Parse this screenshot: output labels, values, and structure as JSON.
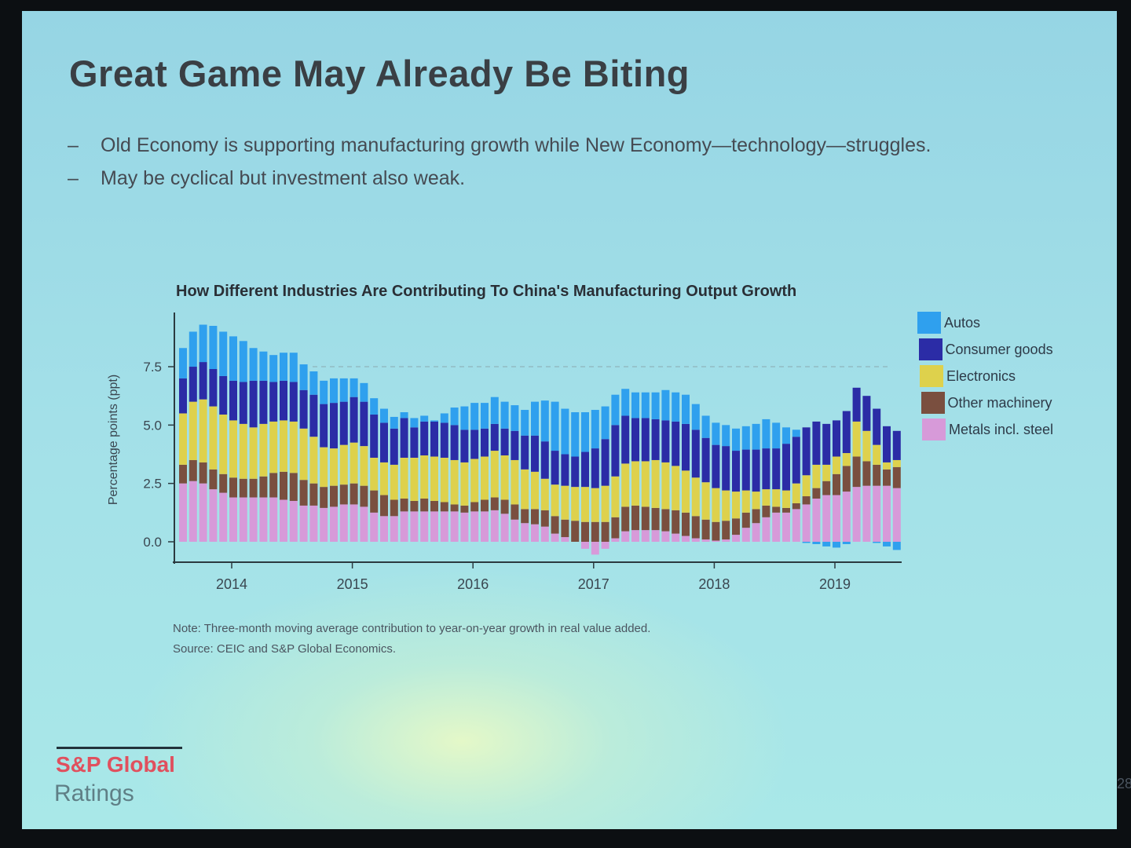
{
  "slide": {
    "title": "Great Game May Already Be Biting",
    "bullets": [
      {
        "marker": "–",
        "text": "Old Economy is supporting manufacturing growth while New Economy—technology—struggles."
      },
      {
        "marker": "–",
        "text": "May be cyclical but investment also weak."
      }
    ],
    "note": "Note: Three-month moving average contribution to year-on-year growth in real value added.",
    "source": "Source: CEIC and S&P Global Economics.",
    "logo": {
      "brand": "S&P Global",
      "sub": "Ratings",
      "brand_color": "#e0505e"
    },
    "page_number": "28"
  },
  "chart_data": {
    "type": "bar",
    "stacked": true,
    "title": "How Different Industries Are Contributing To China's Manufacturing Output Growth",
    "xlabel": "",
    "ylabel": "Percentage points (ppt)",
    "ylim": [
      -0.8,
      9.5
    ],
    "yticks": [
      "0.0",
      "2.5",
      "5.0",
      "7.5"
    ],
    "xticks": [
      "2014",
      "2015",
      "2016",
      "2017",
      "2018",
      "2019"
    ],
    "reference_line": {
      "y": 7.5,
      "style": "dashed"
    },
    "legend_position": "right",
    "x": [
      "2013-08",
      "2013-09",
      "2013-10",
      "2013-11",
      "2013-12",
      "2014-01",
      "2014-02",
      "2014-03",
      "2014-04",
      "2014-05",
      "2014-06",
      "2014-07",
      "2014-08",
      "2014-09",
      "2014-10",
      "2014-11",
      "2014-12",
      "2015-01",
      "2015-02",
      "2015-03",
      "2015-04",
      "2015-05",
      "2015-06",
      "2015-07",
      "2015-08",
      "2015-09",
      "2015-10",
      "2015-11",
      "2015-12",
      "2016-01",
      "2016-02",
      "2016-03",
      "2016-04",
      "2016-05",
      "2016-06",
      "2016-07",
      "2016-08",
      "2016-09",
      "2016-10",
      "2016-11",
      "2016-12",
      "2017-01",
      "2017-02",
      "2017-03",
      "2017-04",
      "2017-05",
      "2017-06",
      "2017-07",
      "2017-08",
      "2017-09",
      "2017-10",
      "2017-11",
      "2017-12",
      "2018-01",
      "2018-02",
      "2018-03",
      "2018-04",
      "2018-05",
      "2018-06",
      "2018-07",
      "2018-08",
      "2018-09",
      "2018-10",
      "2018-11",
      "2018-12",
      "2019-01",
      "2019-02",
      "2019-03",
      "2019-04",
      "2019-05",
      "2019-06",
      "2019-07"
    ],
    "series": [
      {
        "name": "Metals incl. steel",
        "color": "#d79ad9",
        "values": [
          2.5,
          2.6,
          2.5,
          2.25,
          2.1,
          1.9,
          1.9,
          1.9,
          1.9,
          1.9,
          1.8,
          1.75,
          1.55,
          1.55,
          1.45,
          1.5,
          1.6,
          1.6,
          1.5,
          1.25,
          1.1,
          1.1,
          1.3,
          1.3,
          1.3,
          1.3,
          1.3,
          1.3,
          1.25,
          1.3,
          1.3,
          1.35,
          1.2,
          0.95,
          0.8,
          0.75,
          0.65,
          0.35,
          0.2,
          0,
          -0.3,
          -0.55,
          -0.3,
          0.15,
          0.45,
          0.5,
          0.5,
          0.5,
          0.45,
          0.35,
          0.25,
          0.15,
          0.1,
          0.05,
          0.1,
          0.3,
          0.6,
          0.8,
          1.05,
          1.25,
          1.25,
          1.4,
          1.6,
          1.85,
          2.0,
          2.0,
          2.15,
          2.35,
          2.4,
          2.4,
          2.4,
          2.3
        ]
      },
      {
        "name": "Other machinery",
        "color": "#7a4f3f",
        "values": [
          0.8,
          0.9,
          0.9,
          0.85,
          0.8,
          0.85,
          0.8,
          0.8,
          0.9,
          1.05,
          1.2,
          1.2,
          1.1,
          0.95,
          0.9,
          0.9,
          0.85,
          0.9,
          0.9,
          0.95,
          0.9,
          0.7,
          0.55,
          0.45,
          0.55,
          0.45,
          0.4,
          0.3,
          0.3,
          0.4,
          0.5,
          0.55,
          0.6,
          0.65,
          0.6,
          0.65,
          0.7,
          0.75,
          0.75,
          0.9,
          0.85,
          0.85,
          0.85,
          0.9,
          1.05,
          1.05,
          1.0,
          0.95,
          0.95,
          1.0,
          1.0,
          0.95,
          0.85,
          0.8,
          0.8,
          0.7,
          0.65,
          0.6,
          0.5,
          0.25,
          0.2,
          0.25,
          0.35,
          0.45,
          0.6,
          0.9,
          1.1,
          1.3,
          1.05,
          0.9,
          0.7,
          0.9
        ]
      },
      {
        "name": "Electronics",
        "color": "#ded14c",
        "values": [
          2.2,
          2.5,
          2.7,
          2.7,
          2.55,
          2.45,
          2.35,
          2.2,
          2.25,
          2.2,
          2.2,
          2.2,
          2.2,
          2.0,
          1.7,
          1.6,
          1.7,
          1.75,
          1.7,
          1.4,
          1.4,
          1.5,
          1.75,
          1.85,
          1.85,
          1.9,
          1.9,
          1.9,
          1.85,
          1.85,
          1.85,
          2.0,
          1.9,
          1.9,
          1.7,
          1.6,
          1.35,
          1.35,
          1.45,
          1.45,
          1.5,
          1.45,
          1.55,
          1.75,
          1.85,
          1.9,
          1.95,
          2.05,
          2.0,
          1.9,
          1.8,
          1.65,
          1.6,
          1.45,
          1.3,
          1.15,
          0.95,
          0.75,
          0.7,
          0.75,
          0.75,
          0.85,
          0.9,
          1.0,
          0.7,
          0.75,
          0.55,
          1.5,
          1.3,
          0.85,
          0.3,
          0.3
        ]
      },
      {
        "name": "Consumer goods",
        "color": "#2b2ca6",
        "values": [
          1.5,
          1.5,
          1.6,
          1.6,
          1.65,
          1.7,
          1.8,
          2.0,
          1.85,
          1.7,
          1.7,
          1.7,
          1.65,
          1.8,
          1.85,
          1.95,
          1.85,
          1.95,
          1.9,
          1.85,
          1.7,
          1.55,
          1.7,
          1.3,
          1.45,
          1.5,
          1.5,
          1.5,
          1.4,
          1.25,
          1.2,
          1.15,
          1.15,
          1.25,
          1.45,
          1.55,
          1.6,
          1.45,
          1.35,
          1.3,
          1.5,
          1.7,
          2.0,
          2.2,
          2.05,
          1.85,
          1.85,
          1.75,
          1.8,
          1.9,
          2.0,
          2.05,
          1.9,
          1.85,
          1.9,
          1.75,
          1.75,
          1.8,
          1.75,
          1.75,
          2.0,
          2.0,
          2.05,
          1.85,
          1.75,
          1.55,
          1.8,
          1.45,
          1.5,
          1.55,
          1.55,
          1.25
        ]
      },
      {
        "name": "Autos",
        "color": "#2fa0ee",
        "values": [
          1.3,
          1.5,
          1.6,
          1.85,
          1.9,
          1.9,
          1.75,
          1.4,
          1.25,
          1.15,
          1.2,
          1.25,
          1.1,
          1.0,
          1.0,
          1.05,
          1.0,
          0.8,
          0.8,
          0.7,
          0.6,
          0.5,
          0.25,
          0.4,
          0.25,
          0.05,
          0.4,
          0.75,
          1.0,
          1.15,
          1.1,
          1.15,
          1.15,
          1.1,
          1.1,
          1.45,
          1.75,
          2.1,
          1.95,
          1.9,
          1.7,
          1.65,
          1.4,
          1.3,
          1.15,
          1.1,
          1.1,
          1.15,
          1.3,
          1.25,
          1.25,
          1.1,
          0.95,
          0.95,
          0.9,
          0.95,
          1.0,
          1.1,
          1.25,
          1.1,
          0.7,
          0.3,
          -0.05,
          -0.1,
          -0.2,
          -0.25,
          -0.1,
          0,
          0,
          -0.05,
          -0.2,
          -0.35
        ]
      }
    ],
    "legend_order": [
      "Autos",
      "Consumer goods",
      "Electronics",
      "Other machinery",
      "Metals incl. steel"
    ]
  }
}
